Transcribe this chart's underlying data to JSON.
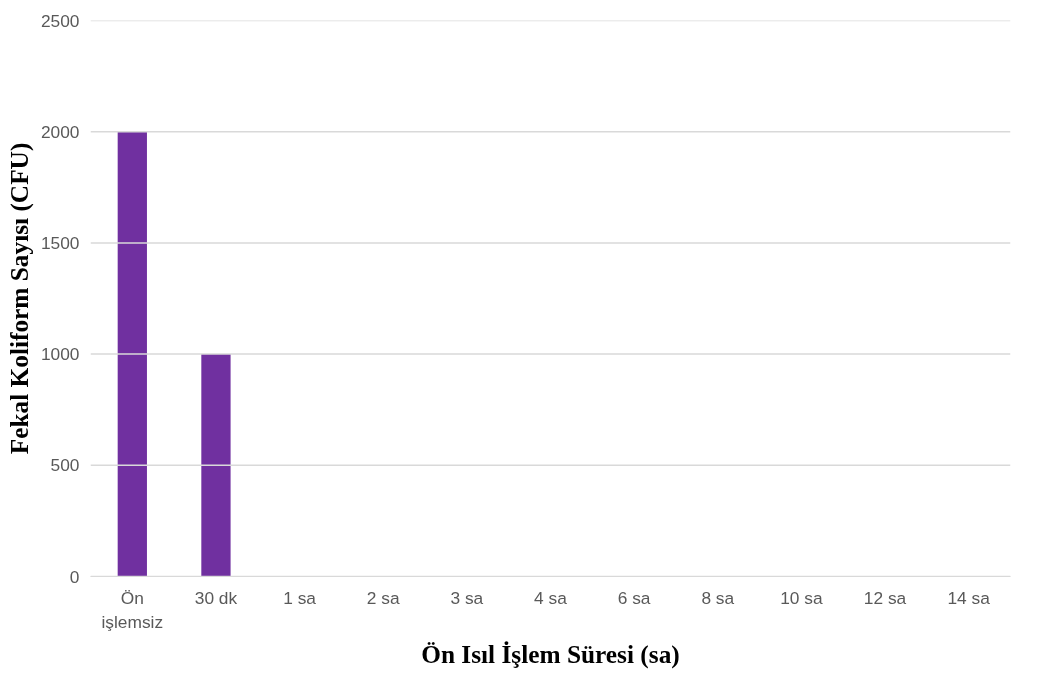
{
  "chart_data": {
    "type": "bar",
    "xlabel": "Ön Isıl İşlem Süresi (sa)",
    "ylabel": "Fekal Koliform Sayısı (CFU)",
    "categories": [
      "Ön işlemsiz",
      "30 dk",
      "1 sa",
      "2 sa",
      "3 sa",
      "4 sa",
      "6 sa",
      "8 sa",
      "10 sa",
      "12 sa",
      "14 sa"
    ],
    "values": [
      2000,
      1000,
      0,
      0,
      0,
      0,
      0,
      0,
      0,
      0,
      0
    ],
    "color": "#7030a0",
    "ylim": [
      0,
      2500
    ],
    "yticks": [
      0,
      500,
      1000,
      1500,
      2000,
      2500
    ],
    "grid": "y"
  }
}
